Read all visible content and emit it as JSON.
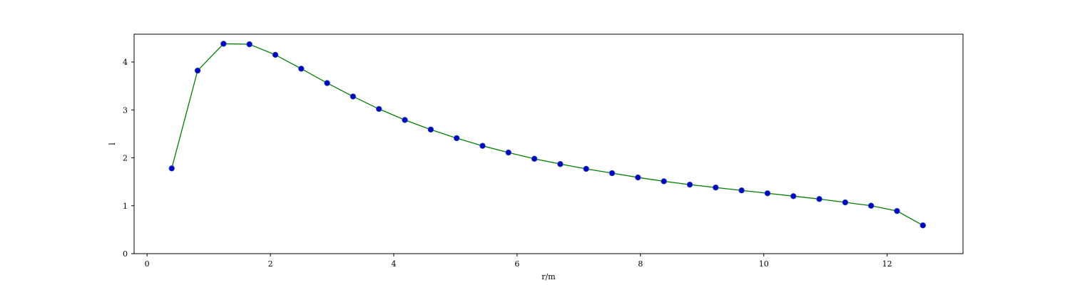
{
  "chart_data": {
    "type": "line",
    "title": "",
    "xlabel": "r/m",
    "ylabel": "l",
    "xlim": [
      -0.21,
      13.23
    ],
    "ylim": [
      0,
      4.58
    ],
    "xticks": [
      0,
      2,
      4,
      6,
      8,
      10,
      12
    ],
    "yticks": [
      0,
      1,
      2,
      3,
      4
    ],
    "grid": false,
    "legend": "none",
    "series": [
      {
        "line_color": "#008000",
        "marker_color": "#0000cc",
        "marker_edge": "#1f4fa8",
        "x": [
          0.4,
          0.82,
          1.24,
          1.66,
          2.08,
          2.5,
          2.92,
          3.34,
          3.76,
          4.18,
          4.6,
          5.02,
          5.44,
          5.86,
          6.28,
          6.7,
          7.12,
          7.54,
          7.96,
          8.38,
          8.8,
          9.22,
          9.64,
          10.06,
          10.48,
          10.9,
          11.32,
          11.74,
          12.16,
          12.58
        ],
        "y": [
          1.78,
          3.82,
          4.38,
          4.37,
          4.15,
          3.86,
          3.56,
          3.28,
          3.02,
          2.79,
          2.59,
          2.41,
          2.25,
          2.11,
          1.98,
          1.87,
          1.77,
          1.68,
          1.59,
          1.51,
          1.44,
          1.38,
          1.32,
          1.26,
          1.2,
          1.14,
          1.07,
          1.0,
          0.89,
          0.59
        ]
      }
    ]
  }
}
